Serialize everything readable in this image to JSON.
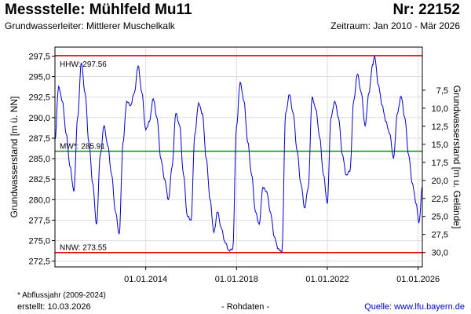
{
  "header": {
    "title_left": "Messstelle: Mühlfeld Mu11",
    "title_right": "Nr: 22152",
    "subtitle_left": "Grundwasserleiter:   Mittlerer Muschelkalk",
    "subtitle_right": "Zeitraum: Jan 2010 - Mär 2026"
  },
  "footer": {
    "note": "* Abflussjahr (2009-2024)",
    "created": "erstellt:   10.03.2026",
    "middle": "- Rohdaten -",
    "source": "Quelle: www.lfu.bayern.de"
  },
  "chart_data": {
    "type": "line",
    "ylabel": "Grundwasserstand [m ü. NN]",
    "y2label": "Grundwasserstand [m u. Gelände]",
    "ylim": [
      272.5,
      297.5
    ],
    "y_ticks": [
      "272,5",
      "275,0",
      "277,5",
      "280,0",
      "282,5",
      "285,0",
      "287,5",
      "290,0",
      "292,5",
      "295,0",
      "297,5"
    ],
    "y2_ticks": [
      "30,0",
      "27,5",
      "25,0",
      "22,5",
      "20,0",
      "17,5",
      "15,0",
      "12,5",
      "10,0",
      "7,5"
    ],
    "y2_values": [
      30.0,
      27.5,
      25.0,
      22.5,
      20.0,
      17.5,
      15.0,
      12.5,
      10.0,
      7.5
    ],
    "x_ticks": [
      "01.01.2014",
      "01.01.2018",
      "01.01.2022",
      "01.01.2026"
    ],
    "x_tick_years": [
      2014,
      2018,
      2022,
      2026
    ],
    "x_range": [
      "2010-01-01",
      "2026-03-10"
    ],
    "grid": true,
    "reference_lines": [
      {
        "label": "HHW: 297.56",
        "value": 297.56,
        "color": "#e00000"
      },
      {
        "label": "MW*: 285.91",
        "value": 285.91,
        "color": "#009000"
      },
      {
        "label": "NNW: 273.55",
        "value": 273.55,
        "color": "#e00000"
      }
    ],
    "series": [
      {
        "color": "#0000cc",
        "points": [
          [
            "2010-01-01",
            287.3
          ],
          [
            "2010-03-01",
            293.8
          ],
          [
            "2010-05-01",
            292.0
          ],
          [
            "2010-07-01",
            288.0
          ],
          [
            "2010-09-01",
            284.0
          ],
          [
            "2010-11-01",
            281.0
          ],
          [
            "2011-01-01",
            290.0
          ],
          [
            "2011-03-01",
            296.7
          ],
          [
            "2011-05-01",
            293.0
          ],
          [
            "2011-07-01",
            287.0
          ],
          [
            "2011-09-01",
            282.0
          ],
          [
            "2011-11-01",
            277.0
          ],
          [
            "2012-01-01",
            285.5
          ],
          [
            "2012-03-01",
            289.0
          ],
          [
            "2012-05-01",
            286.5
          ],
          [
            "2012-07-01",
            283.0
          ],
          [
            "2012-09-01",
            278.5
          ],
          [
            "2012-11-01",
            275.8
          ],
          [
            "2013-01-01",
            287.0
          ],
          [
            "2013-03-01",
            292.0
          ],
          [
            "2013-05-01",
            291.5
          ],
          [
            "2013-07-01",
            293.0
          ],
          [
            "2013-09-01",
            296.3
          ],
          [
            "2013-11-01",
            293.0
          ],
          [
            "2014-01-01",
            288.5
          ],
          [
            "2014-03-01",
            289.5
          ],
          [
            "2014-05-01",
            292.3
          ],
          [
            "2014-07-01",
            290.0
          ],
          [
            "2014-09-01",
            285.0
          ],
          [
            "2014-11-01",
            282.5
          ],
          [
            "2015-01-01",
            280.0
          ],
          [
            "2015-03-01",
            284.0
          ],
          [
            "2015-05-01",
            290.5
          ],
          [
            "2015-07-01",
            289.0
          ],
          [
            "2015-09-01",
            283.0
          ],
          [
            "2015-11-01",
            278.0
          ],
          [
            "2016-01-01",
            277.5
          ],
          [
            "2016-03-01",
            288.0
          ],
          [
            "2016-05-01",
            291.8
          ],
          [
            "2016-07-01",
            290.5
          ],
          [
            "2016-09-01",
            285.0
          ],
          [
            "2016-11-01",
            280.0
          ],
          [
            "2017-01-01",
            276.0
          ],
          [
            "2017-03-01",
            278.5
          ],
          [
            "2017-05-01",
            276.5
          ],
          [
            "2017-07-01",
            274.8
          ],
          [
            "2017-09-01",
            273.8
          ],
          [
            "2017-11-01",
            274.0
          ],
          [
            "2018-01-01",
            289.0
          ],
          [
            "2018-03-01",
            294.3
          ],
          [
            "2018-05-01",
            292.0
          ],
          [
            "2018-07-01",
            287.0
          ],
          [
            "2018-09-01",
            283.0
          ],
          [
            "2018-11-01",
            278.5
          ],
          [
            "2019-01-01",
            277.0
          ],
          [
            "2019-03-01",
            281.5
          ],
          [
            "2019-05-01",
            281.0
          ],
          [
            "2019-07-01",
            278.5
          ],
          [
            "2019-09-01",
            275.5
          ],
          [
            "2019-11-01",
            274.0
          ],
          [
            "2020-01-01",
            273.6
          ],
          [
            "2020-03-01",
            290.5
          ],
          [
            "2020-05-01",
            292.8
          ],
          [
            "2020-07-01",
            290.5
          ],
          [
            "2020-09-01",
            286.0
          ],
          [
            "2020-11-01",
            282.0
          ],
          [
            "2021-01-01",
            279.0
          ],
          [
            "2021-03-01",
            281.5
          ],
          [
            "2021-05-01",
            292.5
          ],
          [
            "2021-07-01",
            291.0
          ],
          [
            "2021-09-01",
            287.5
          ],
          [
            "2021-11-01",
            283.0
          ],
          [
            "2022-01-01",
            279.5
          ],
          [
            "2022-03-01",
            290.0
          ],
          [
            "2022-05-01",
            292.0
          ],
          [
            "2022-07-01",
            290.0
          ],
          [
            "2022-09-01",
            285.5
          ],
          [
            "2022-11-01",
            283.0
          ],
          [
            "2023-01-01",
            283.5
          ],
          [
            "2023-03-01",
            292.0
          ],
          [
            "2023-05-01",
            295.3
          ],
          [
            "2023-07-01",
            293.0
          ],
          [
            "2023-09-01",
            289.0
          ],
          [
            "2023-11-01",
            293.0
          ],
          [
            "2024-01-01",
            296.5
          ],
          [
            "2024-02-01",
            297.5
          ],
          [
            "2024-04-01",
            294.0
          ],
          [
            "2024-06-01",
            291.5
          ],
          [
            "2024-08-01",
            289.5
          ],
          [
            "2024-10-01",
            288.0
          ],
          [
            "2024-12-01",
            285.0
          ],
          [
            "2025-02-01",
            290.5
          ],
          [
            "2025-04-01",
            292.6
          ],
          [
            "2025-06-01",
            290.0
          ],
          [
            "2025-08-01",
            285.5
          ],
          [
            "2025-10-01",
            282.0
          ],
          [
            "2025-12-01",
            279.5
          ],
          [
            "2026-01-15",
            277.2
          ],
          [
            "2026-03-10",
            281.6
          ]
        ]
      }
    ]
  }
}
